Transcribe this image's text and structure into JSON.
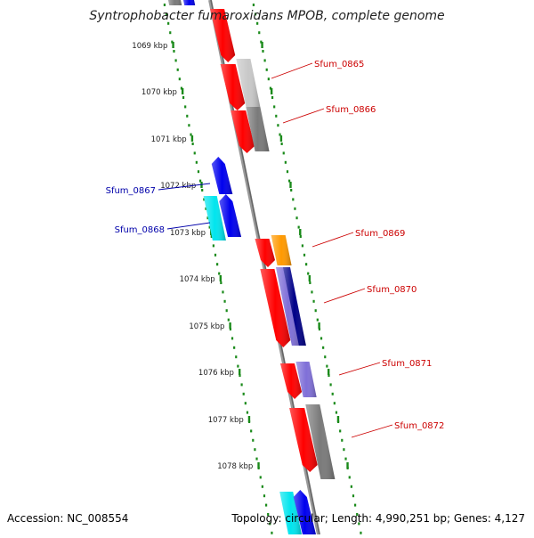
{
  "header": {
    "title": "Syntrophobacter fumaroxidans MPOB, complete genome"
  },
  "footer": {
    "accession": "Accession: NC_008554",
    "topology": "Topology: circular; Length: 4,990,251 bp; Genes: 4,127"
  },
  "colors": {
    "backbone": "#888888",
    "tick": "#1a8a1a",
    "red": "#ff0000",
    "blue": "#0000ee",
    "cyan": "#00e5ee",
    "orange": "#ff9900",
    "navy": "#000088",
    "lavender": "#7f6fd8",
    "gray": "#7a7a7a",
    "lightgray": "#c8c8c8",
    "pink": "#f4a0a0",
    "label_red": "#cc0000",
    "label_blue": "#0000aa"
  },
  "scale_labels": [
    "1069 kbp",
    "1070 kbp",
    "1071 kbp",
    "1072 kbp",
    "1073 kbp",
    "1074 kbp",
    "1075 kbp",
    "1076 kbp",
    "1077 kbp",
    "1078 kbp"
  ],
  "gene_labels": [
    {
      "name": "Sfum_0865",
      "color": "label_red"
    },
    {
      "name": "Sfum_0866",
      "color": "label_red"
    },
    {
      "name": "Sfum_0867",
      "color": "label_blue"
    },
    {
      "name": "Sfum_0868",
      "color": "label_blue"
    },
    {
      "name": "Sfum_0869",
      "color": "label_red"
    },
    {
      "name": "Sfum_0870",
      "color": "label_red"
    },
    {
      "name": "Sfum_0871",
      "color": "label_red"
    },
    {
      "name": "Sfum_0872",
      "color": "label_red"
    }
  ]
}
